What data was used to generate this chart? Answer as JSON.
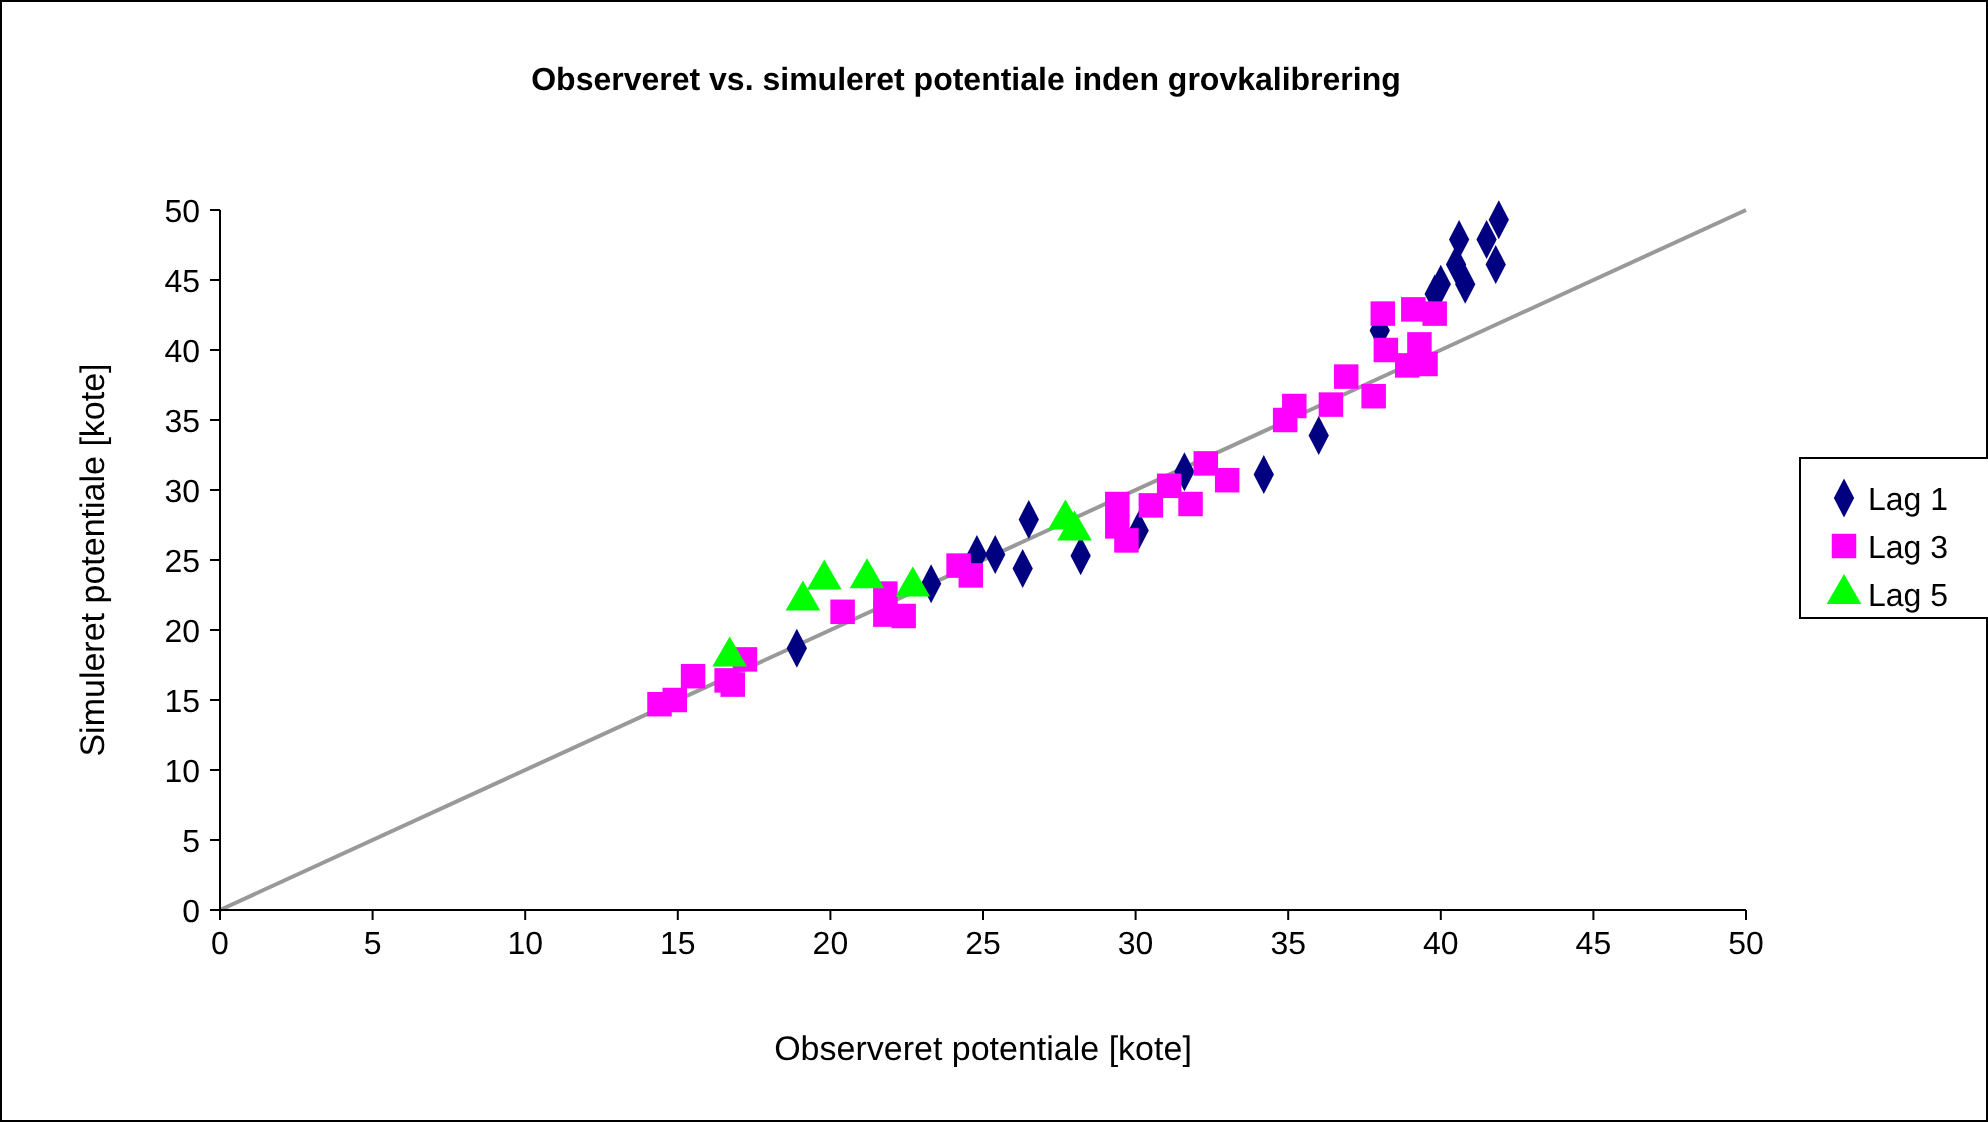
{
  "chart_data": {
    "type": "scatter",
    "title": "Observeret vs. simuleret potentiale inden grovkalibrering",
    "xlabel": "Observeret potentiale [kote]",
    "ylabel": "Simuleret potentiale [kote]",
    "xlim": [
      0,
      50
    ],
    "ylim": [
      0,
      50
    ],
    "xticks": [
      0,
      5,
      10,
      15,
      20,
      25,
      30,
      35,
      40,
      45,
      50
    ],
    "yticks": [
      0,
      5,
      10,
      15,
      20,
      25,
      30,
      35,
      40,
      45,
      50
    ],
    "legend": "right",
    "series": [
      {
        "type": "line",
        "color": "#999999",
        "marker": "none",
        "x": [
          0,
          50
        ],
        "values": [
          0,
          50
        ]
      },
      {
        "name": "Lag 1",
        "color": "#000080",
        "marker": "diamond",
        "x": [
          18.9,
          23.3,
          24.8,
          25.4,
          26.5,
          26.3,
          28.2,
          30.1,
          31.6,
          34.2,
          36.0,
          38.0,
          39.8,
          40.0,
          40.8,
          40.5,
          40.6,
          41.8,
          41.5,
          41.9
        ],
        "values": [
          18.7,
          23.3,
          25.4,
          25.4,
          27.9,
          24.4,
          25.3,
          27.1,
          31.3,
          31.1,
          33.9,
          41.4,
          44.0,
          44.7,
          44.7,
          46.1,
          47.9,
          46.1,
          47.9,
          49.3
        ]
      },
      {
        "name": "Lag 3",
        "color": "#ff00ff",
        "marker": "square",
        "x": [
          14.4,
          14.9,
          15.5,
          16.6,
          16.8,
          17.2,
          20.4,
          21.8,
          21.8,
          22.4,
          24.2,
          24.6,
          29.4,
          29.4,
          29.7,
          30.5,
          31.1,
          31.8,
          32.3,
          33.0,
          34.9,
          35.2,
          36.4,
          36.9,
          37.8,
          38.1,
          39.1,
          39.8,
          38.2,
          39.3,
          38.9,
          39.5
        ],
        "values": [
          14.7,
          15.0,
          16.7,
          16.4,
          16.1,
          17.9,
          21.3,
          22.6,
          21.1,
          21.0,
          24.6,
          23.9,
          29.0,
          27.4,
          26.4,
          28.9,
          30.3,
          29.0,
          31.9,
          30.7,
          35.0,
          36.0,
          36.1,
          38.1,
          36.7,
          42.6,
          42.9,
          42.6,
          40.0,
          40.4,
          38.9,
          39.0
        ]
      },
      {
        "name": "Lag 5",
        "color": "#00ff00",
        "marker": "triangle",
        "x": [
          16.7,
          19.1,
          19.8,
          21.2,
          22.7,
          27.7,
          28.0
        ],
        "values": [
          18.1,
          22.1,
          23.6,
          23.7,
          23.1,
          27.9,
          27.1
        ]
      }
    ]
  }
}
